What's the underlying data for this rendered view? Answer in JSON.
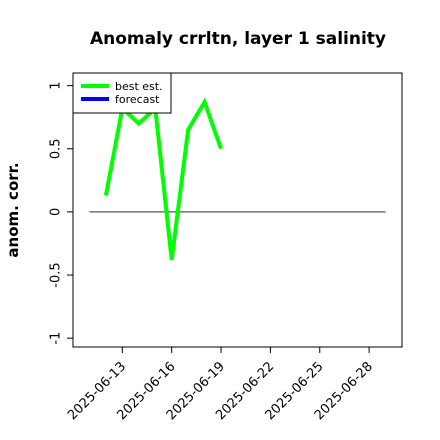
{
  "chart_data": {
    "type": "line",
    "title": "Anomaly crrltn, layer 1 salinity",
    "ylabel": "anom. corr.",
    "x": [
      "2025-06-12",
      "2025-06-13",
      "2025-06-14",
      "2025-06-15",
      "2025-06-16",
      "2025-06-17",
      "2025-06-18",
      "2025-06-19"
    ],
    "series": [
      {
        "name": "best est.",
        "color": "#00ff00",
        "values": [
          0.13,
          0.82,
          0.7,
          0.82,
          -0.38,
          0.65,
          0.87,
          0.5
        ]
      },
      {
        "name": "forecast",
        "color": "#0000ff",
        "values": [
          null,
          null,
          null,
          null,
          null,
          null,
          null,
          null
        ]
      }
    ],
    "xlim": [
      "2025-06-10",
      "2025-06-30"
    ],
    "xticks": [
      "2025-06-13",
      "2025-06-16",
      "2025-06-19",
      "2025-06-22",
      "2025-06-25",
      "2025-06-28"
    ],
    "highlight_xtick": {
      "value": "2025-06-19",
      "color": "#228b22"
    },
    "ylim": [
      -1.07,
      1.1
    ],
    "yticks": [
      -1.0,
      -0.5,
      0.0,
      0.5,
      1.0
    ],
    "hline": {
      "y": 0,
      "x": [
        "2025-06-11",
        "2025-06-29"
      ],
      "color": "#555555"
    },
    "legend": "upper left"
  }
}
